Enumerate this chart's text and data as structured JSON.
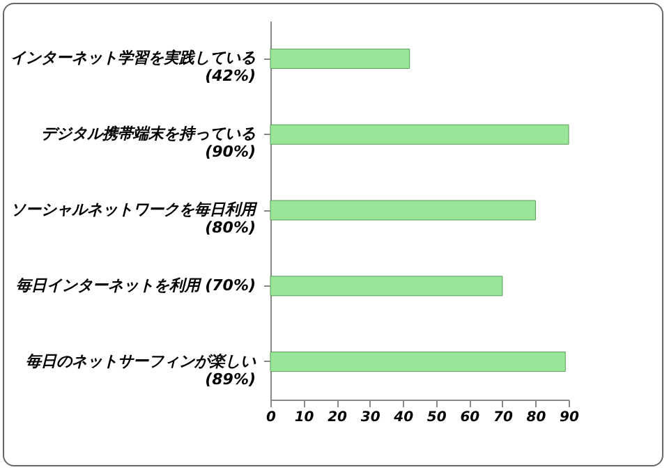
{
  "chart_data": {
    "type": "bar",
    "orientation": "horizontal",
    "categories": [
      "インターネット学習を実践している (42%)",
      "デジタル携帯端末を持っている (90%)",
      "ソーシャルネットワークを毎日利用 (80%)",
      "毎日インターネットを利用 (70%)",
      "毎日のネットサーフィンが楽しい (89%)"
    ],
    "values": [
      42,
      90,
      80,
      70,
      89
    ],
    "color": "#99e699",
    "xlim": [
      0,
      90
    ],
    "xticks": [
      0,
      10,
      20,
      30,
      40,
      50,
      60,
      70,
      80,
      90
    ],
    "grid": false
  }
}
